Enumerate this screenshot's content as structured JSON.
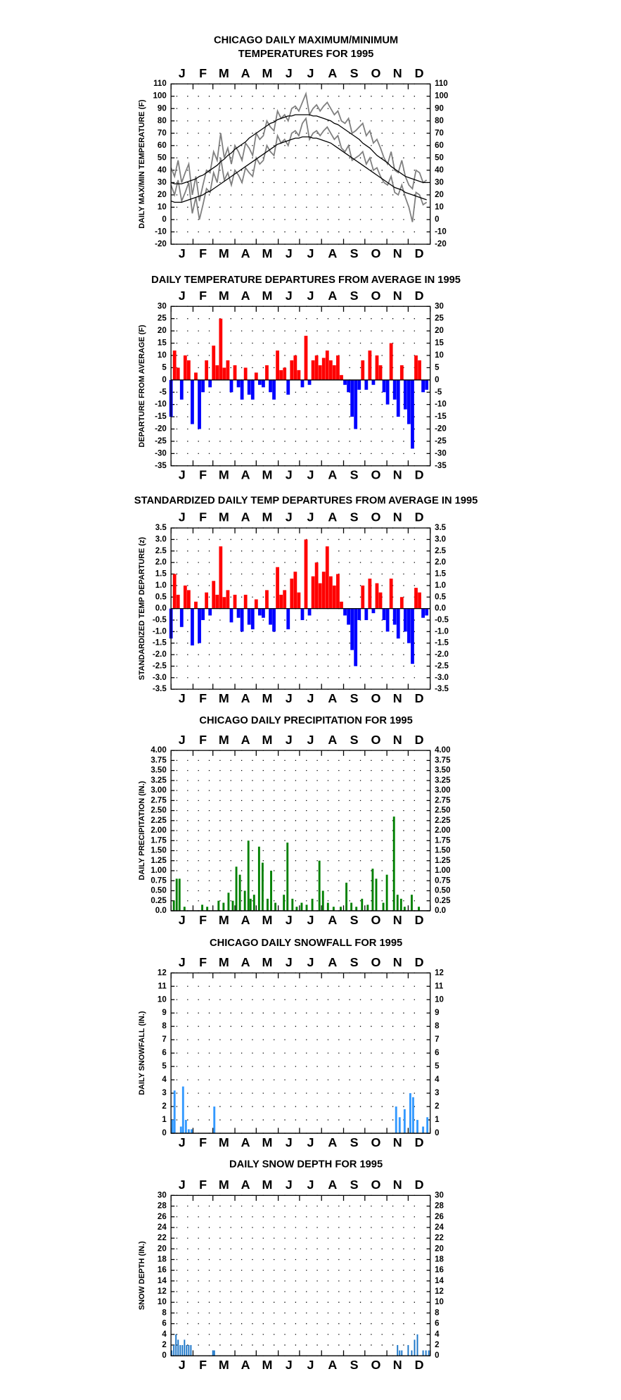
{
  "chart_data": [
    {
      "type": "line",
      "title": [
        "CHICAGO DAILY MAXIMUM/MINIMUM",
        "TEMPERATURES FOR 1995"
      ],
      "y_label": "DAILY MAX/MIN TEMPERATURE (F)",
      "categories": [
        "J",
        "F",
        "M",
        "A",
        "M",
        "J",
        "J",
        "A",
        "S",
        "O",
        "N",
        "D"
      ],
      "xlim": [
        1,
        366
      ],
      "ylim": [
        -20,
        110
      ],
      "yticks": [
        -20,
        -10,
        0,
        10,
        20,
        30,
        40,
        50,
        60,
        70,
        80,
        90,
        100,
        110
      ],
      "grid": true,
      "x": [
        1,
        6,
        11,
        16,
        21,
        26,
        31,
        36,
        41,
        46,
        51,
        56,
        61,
        66,
        71,
        76,
        81,
        86,
        91,
        96,
        101,
        106,
        111,
        116,
        121,
        126,
        131,
        136,
        141,
        146,
        151,
        156,
        161,
        166,
        171,
        176,
        181,
        186,
        191,
        196,
        201,
        206,
        211,
        216,
        221,
        226,
        231,
        236,
        241,
        246,
        251,
        256,
        261,
        266,
        271,
        276,
        281,
        286,
        291,
        296,
        301,
        306,
        311,
        316,
        321,
        326,
        331,
        336,
        341,
        346,
        351,
        356,
        361
      ],
      "series": [
        {
          "name": "Daily Max",
          "color": "#7f7f7f",
          "values": [
            42,
            35,
            48,
            30,
            38,
            45,
            20,
            35,
            15,
            28,
            40,
            38,
            55,
            48,
            70,
            50,
            58,
            45,
            60,
            55,
            48,
            62,
            58,
            52,
            70,
            65,
            68,
            80,
            75,
            72,
            88,
            82,
            85,
            80,
            90,
            92,
            88,
            95,
            102,
            85,
            90,
            93,
            88,
            92,
            95,
            90,
            85,
            88,
            80,
            78,
            82,
            70,
            72,
            75,
            78,
            68,
            72,
            62,
            65,
            58,
            50,
            45,
            55,
            40,
            38,
            48,
            35,
            28,
            25,
            40,
            38,
            30,
            32
          ]
        },
        {
          "name": "Daily Min",
          "color": "#7f7f7f",
          "values": [
            28,
            20,
            32,
            15,
            22,
            30,
            5,
            18,
            0,
            12,
            25,
            22,
            38,
            30,
            50,
            32,
            38,
            28,
            40,
            36,
            30,
            42,
            38,
            35,
            50,
            45,
            48,
            60,
            55,
            52,
            68,
            62,
            65,
            60,
            70,
            72,
            68,
            78,
            82,
            65,
            70,
            72,
            68,
            72,
            75,
            70,
            65,
            68,
            58,
            55,
            60,
            48,
            50,
            52,
            55,
            45,
            50,
            40,
            42,
            35,
            30,
            28,
            35,
            22,
            20,
            28,
            18,
            10,
            -2,
            22,
            20,
            12,
            14
          ]
        },
        {
          "name": "Normal Max",
          "color": "#000000",
          "values": [
            30,
            29,
            29,
            29,
            30,
            31,
            32,
            33,
            35,
            36,
            38,
            40,
            42,
            44,
            47,
            49,
            52,
            54,
            57,
            59,
            61,
            63,
            66,
            68,
            70,
            72,
            74,
            76,
            78,
            79,
            81,
            82,
            83,
            84,
            84,
            85,
            85,
            85,
            85,
            85,
            84,
            84,
            83,
            82,
            81,
            80,
            78,
            77,
            75,
            73,
            71,
            69,
            67,
            65,
            62,
            60,
            58,
            55,
            52,
            50,
            48,
            46,
            43,
            41,
            39,
            37,
            35,
            34,
            33,
            32,
            31,
            30,
            30
          ]
        },
        {
          "name": "Normal Min",
          "color": "#000000",
          "values": [
            15,
            14,
            14,
            14,
            15,
            16,
            17,
            18,
            19,
            20,
            22,
            23,
            25,
            27,
            29,
            31,
            33,
            35,
            37,
            39,
            41,
            43,
            45,
            47,
            49,
            51,
            53,
            55,
            57,
            59,
            61,
            62,
            63,
            64,
            65,
            66,
            66,
            67,
            67,
            67,
            66,
            66,
            65,
            64,
            63,
            62,
            60,
            58,
            56,
            54,
            52,
            50,
            48,
            46,
            44,
            42,
            40,
            38,
            36,
            34,
            32,
            30,
            28,
            26,
            25,
            24,
            22,
            21,
            20,
            19,
            18,
            17,
            16
          ]
        }
      ]
    },
    {
      "type": "bar",
      "title": "DAILY TEMPERATURE DEPARTURES FROM AVERAGE IN 1995",
      "y_label": "DEPARTURE FROM AVERAGE (F)",
      "categories": [
        "J",
        "F",
        "M",
        "A",
        "M",
        "J",
        "J",
        "A",
        "S",
        "O",
        "N",
        "D"
      ],
      "xlim": [
        1,
        366
      ],
      "ylim": [
        -35,
        30
      ],
      "yticks": [
        -35,
        -30,
        -25,
        -20,
        -15,
        -10,
        -5,
        0,
        5,
        10,
        15,
        20,
        25,
        30
      ],
      "grid": true,
      "positive_color": "#ff0000",
      "negative_color": "#0000ff",
      "x": [
        1,
        6,
        11,
        16,
        21,
        26,
        31,
        36,
        41,
        46,
        51,
        56,
        61,
        66,
        71,
        76,
        81,
        86,
        91,
        96,
        101,
        106,
        111,
        116,
        121,
        126,
        131,
        136,
        141,
        146,
        151,
        156,
        161,
        166,
        171,
        176,
        181,
        186,
        191,
        196,
        201,
        206,
        211,
        216,
        221,
        226,
        231,
        236,
        241,
        246,
        251,
        256,
        261,
        266,
        271,
        276,
        281,
        286,
        291,
        296,
        301,
        306,
        311,
        316,
        321,
        326,
        331,
        336,
        341,
        346,
        351,
        356,
        361
      ],
      "values": [
        -15,
        12,
        5,
        -8,
        10,
        8,
        -18,
        3,
        -20,
        -5,
        8,
        -3,
        14,
        6,
        25,
        5,
        8,
        -5,
        6,
        -3,
        -8,
        5,
        -6,
        -8,
        3,
        -2,
        -3,
        6,
        -5,
        -8,
        12,
        4,
        5,
        -6,
        8,
        10,
        4,
        -3,
        18,
        -2,
        8,
        10,
        6,
        9,
        12,
        8,
        6,
        10,
        2,
        -2,
        -5,
        -15,
        -20,
        -4,
        8,
        -4,
        12,
        -2,
        10,
        6,
        -5,
        -10,
        15,
        -8,
        -15,
        6,
        -12,
        -18,
        -28,
        10,
        8,
        -5,
        -4
      ]
    },
    {
      "type": "bar",
      "title": "STANDARDIZED DAILY TEMP DEPARTURES FROM AVERAGE IN 1995",
      "y_label": "STANDARDIZED TEMP DEPARTURE (z)",
      "categories": [
        "J",
        "F",
        "M",
        "A",
        "M",
        "J",
        "J",
        "A",
        "S",
        "O",
        "N",
        "D"
      ],
      "xlim": [
        1,
        366
      ],
      "ylim": [
        -3.5,
        3.5
      ],
      "yticks": [
        -3.5,
        {
          "value": -3,
          "label": "-3.0"
        },
        -2.5,
        {
          "value": -2,
          "label": "-2.0"
        },
        -1.5,
        {
          "value": -1,
          "label": "-1.0"
        },
        -0.5,
        {
          "value": 0,
          "label": "0.0"
        },
        0.5,
        {
          "value": 1,
          "label": "1.0"
        },
        1.5,
        {
          "value": 2,
          "label": "2.0"
        },
        2.5,
        {
          "value": 3,
          "label": "3.0"
        },
        3.5
      ],
      "grid": true,
      "positive_color": "#ff0000",
      "negative_color": "#0000ff",
      "x": [
        1,
        6,
        11,
        16,
        21,
        26,
        31,
        36,
        41,
        46,
        51,
        56,
        61,
        66,
        71,
        76,
        81,
        86,
        91,
        96,
        101,
        106,
        111,
        116,
        121,
        126,
        131,
        136,
        141,
        146,
        151,
        156,
        161,
        166,
        171,
        176,
        181,
        186,
        191,
        196,
        201,
        206,
        211,
        216,
        221,
        226,
        231,
        236,
        241,
        246,
        251,
        256,
        261,
        266,
        271,
        276,
        281,
        286,
        291,
        296,
        301,
        306,
        311,
        316,
        321,
        326,
        331,
        336,
        341,
        346,
        351,
        356,
        361
      ],
      "values": [
        -1.3,
        1.5,
        0.6,
        -0.8,
        1.0,
        0.8,
        -1.6,
        0.3,
        -1.5,
        -0.5,
        0.7,
        -0.3,
        1.2,
        0.6,
        2.7,
        0.5,
        0.8,
        -0.6,
        0.6,
        -0.4,
        -1.0,
        0.6,
        -0.7,
        -0.9,
        0.4,
        -0.3,
        -0.4,
        0.8,
        -0.7,
        -1.0,
        1.8,
        0.6,
        0.8,
        -0.9,
        1.3,
        1.6,
        0.7,
        -0.5,
        3.0,
        -0.3,
        1.4,
        2.0,
        1.1,
        1.6,
        2.7,
        1.4,
        1.0,
        1.5,
        0.3,
        -0.3,
        -0.7,
        -1.8,
        -2.5,
        -0.5,
        1.0,
        -0.5,
        1.3,
        -0.2,
        1.1,
        0.7,
        -0.5,
        -1.0,
        1.3,
        -0.7,
        -1.3,
        0.5,
        -1.0,
        -1.5,
        -2.4,
        0.9,
        0.7,
        -0.4,
        -0.3
      ]
    },
    {
      "type": "bar",
      "title": "CHICAGO DAILY PRECIPITATION FOR 1995",
      "y_label": "DAILY PRECIPITATION (IN.)",
      "categories": [
        "J",
        "F",
        "M",
        "A",
        "M",
        "J",
        "J",
        "A",
        "S",
        "O",
        "N",
        "D"
      ],
      "xlim": [
        1,
        366
      ],
      "ylim": [
        0,
        4
      ],
      "yticks": [
        {
          "value": 0,
          "label": "0.0"
        },
        0.25,
        {
          "value": 0.5,
          "label": "0.50"
        },
        0.75,
        {
          "value": 1,
          "label": "1.00"
        },
        1.25,
        {
          "value": 1.5,
          "label": "1.50"
        },
        1.75,
        {
          "value": 2,
          "label": "2.00"
        },
        2.25,
        {
          "value": 2.5,
          "label": "2.50"
        },
        2.75,
        {
          "value": 3,
          "label": "3.00"
        },
        3.25,
        {
          "value": 3.5,
          "label": "3.50"
        },
        3.75,
        {
          "value": 4,
          "label": "4.00"
        }
      ],
      "grid": true,
      "color": "#008000",
      "x": [
        5,
        9,
        13,
        20,
        45,
        52,
        68,
        75,
        82,
        88,
        93,
        98,
        105,
        110,
        113,
        118,
        125,
        130,
        137,
        142,
        148,
        160,
        165,
        172,
        178,
        185,
        192,
        200,
        210,
        215,
        222,
        230,
        240,
        248,
        255,
        262,
        270,
        278,
        285,
        290,
        300,
        305,
        315,
        320,
        325,
        330,
        340,
        350
      ],
      "values": [
        0.25,
        0.8,
        0.8,
        0.1,
        0.15,
        0.1,
        0.25,
        0.2,
        0.45,
        0.25,
        1.1,
        0.9,
        0.5,
        1.75,
        0.3,
        0.4,
        1.6,
        1.2,
        0.3,
        1.0,
        0.2,
        0.4,
        1.7,
        0.3,
        0.1,
        0.2,
        0.15,
        0.3,
        1.25,
        0.5,
        0.2,
        0.1,
        0.1,
        0.7,
        0.2,
        0.1,
        0.3,
        0.15,
        1.05,
        0.8,
        0.2,
        0.9,
        2.35,
        0.4,
        0.3,
        0.1,
        0.4,
        0.1
      ]
    },
    {
      "type": "bar",
      "title": "CHICAGO DAILY SNOWFALL FOR 1995",
      "y_label": "DAILY SNOWFALL (IN.)",
      "categories": [
        "J",
        "F",
        "M",
        "A",
        "M",
        "J",
        "J",
        "A",
        "S",
        "O",
        "N",
        "D"
      ],
      "xlim": [
        1,
        366
      ],
      "ylim": [
        0,
        12
      ],
      "yticks": [
        0,
        1,
        2,
        3,
        4,
        5,
        6,
        7,
        8,
        9,
        10,
        11,
        12
      ],
      "grid": true,
      "color": "#3399ff",
      "x": [
        3,
        6,
        15,
        18,
        22,
        26,
        30,
        62,
        318,
        323,
        330,
        338,
        342,
        348,
        356,
        362
      ],
      "values": [
        1.0,
        3.2,
        0.5,
        3.5,
        1.0,
        0.3,
        0.3,
        2.0,
        2.0,
        1.2,
        1.8,
        3.0,
        2.7,
        1.0,
        0.5,
        1.2
      ]
    },
    {
      "type": "bar",
      "title": "DAILY SNOW DEPTH FOR 1995",
      "y_label": "SNOW DEPTH (IN.)",
      "categories": [
        "J",
        "F",
        "M",
        "A",
        "M",
        "J",
        "J",
        "A",
        "S",
        "O",
        "N",
        "D"
      ],
      "xlim": [
        1,
        366
      ],
      "ylim": [
        0,
        30
      ],
      "yticks": [
        0,
        2,
        4,
        6,
        8,
        10,
        12,
        14,
        16,
        18,
        20,
        22,
        24,
        26,
        28,
        30
      ],
      "grid": true,
      "color": "#1a75c8",
      "x": [
        2,
        5,
        8,
        11,
        14,
        17,
        20,
        23,
        26,
        29,
        60,
        62,
        320,
        323,
        326,
        335,
        340,
        344,
        348,
        356,
        360,
        364
      ],
      "values": [
        1,
        2,
        4,
        3,
        2,
        2,
        3,
        2,
        2,
        2,
        1,
        1,
        2,
        1,
        1,
        2,
        1,
        3,
        4,
        1,
        1,
        1
      ]
    }
  ]
}
